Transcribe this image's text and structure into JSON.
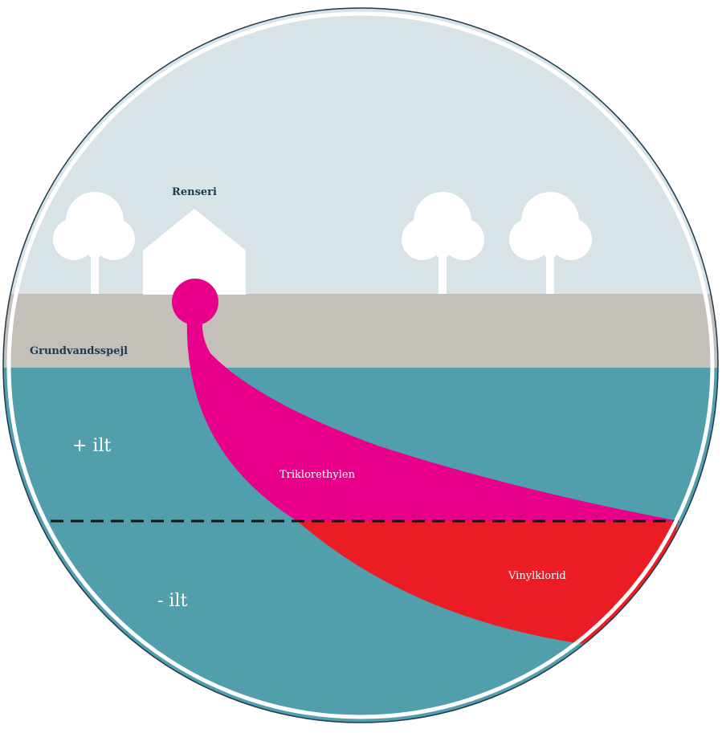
{
  "labels": {
    "building": "Renseri",
    "water_table": "Grundvandsspejl",
    "oxygen_plus": "+ ilt",
    "oxygen_minus": "- ilt",
    "plume_upper": "Triklorethylen",
    "plume_lower": "Vinylklorid"
  },
  "colors": {
    "sky": "#d8e3e7",
    "soil": "#c4bfb8",
    "groundwater": "#519eac",
    "trichloroethylene": "#e8008a",
    "vinyl_chloride": "#ec1c24",
    "outline": "#1f3a4d",
    "tree_and_house": "#ffffff"
  },
  "icons": [
    "tree-icon",
    "house-icon"
  ]
}
